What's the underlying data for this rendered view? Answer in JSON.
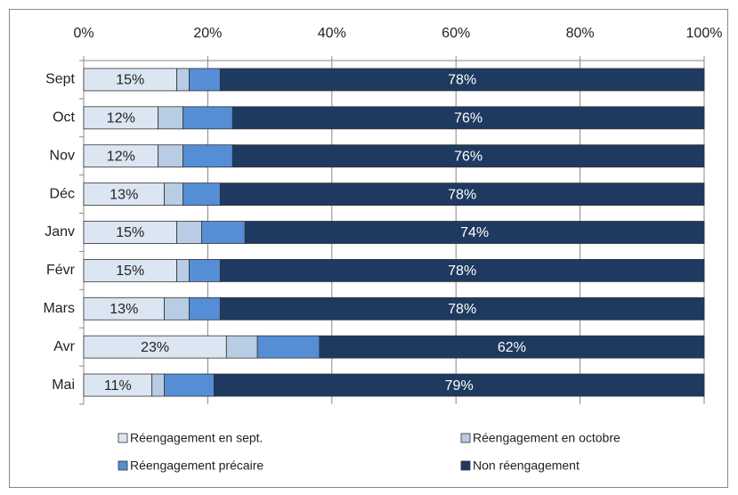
{
  "chart_data": {
    "type": "bar",
    "orientation": "horizontal",
    "stacked": true,
    "categories": [
      "Sept",
      "Oct",
      "Nov",
      "Déc",
      "Janv",
      "Févr",
      "Mars",
      "Avr",
      "Mai"
    ],
    "series": [
      {
        "name": "Réengagement en sept.",
        "color": "#dce6f2",
        "values": [
          15,
          12,
          12,
          13,
          15,
          15,
          13,
          23,
          11
        ],
        "value_labels": [
          "15%",
          "12%",
          "12%",
          "13%",
          "15%",
          "15%",
          "13%",
          "23%",
          "11%"
        ]
      },
      {
        "name": "Réengagement en octobre",
        "color": "#b8cce4",
        "values": [
          2,
          4,
          4,
          3,
          4,
          2,
          4,
          5,
          2
        ]
      },
      {
        "name": "Réengagement précaire",
        "color": "#558ed5",
        "values": [
          5,
          8,
          8,
          6,
          7,
          5,
          5,
          10,
          8
        ]
      },
      {
        "name": "Non réengagement",
        "color": "#1f3a60",
        "values": [
          78,
          76,
          76,
          78,
          74,
          78,
          78,
          62,
          79
        ],
        "value_labels": [
          "78%",
          "76%",
          "76%",
          "78%",
          "74%",
          "78%",
          "78%",
          "62%",
          "79%"
        ]
      }
    ],
    "xlim": [
      0,
      100
    ],
    "xticks": [
      {
        "value": 0,
        "label": "0%"
      },
      {
        "value": 20,
        "label": "20%"
      },
      {
        "value": 40,
        "label": "40%"
      },
      {
        "value": 60,
        "label": "60%"
      },
      {
        "value": 80,
        "label": "80%"
      },
      {
        "value": 100,
        "label": "100%"
      }
    ],
    "grid": true
  }
}
